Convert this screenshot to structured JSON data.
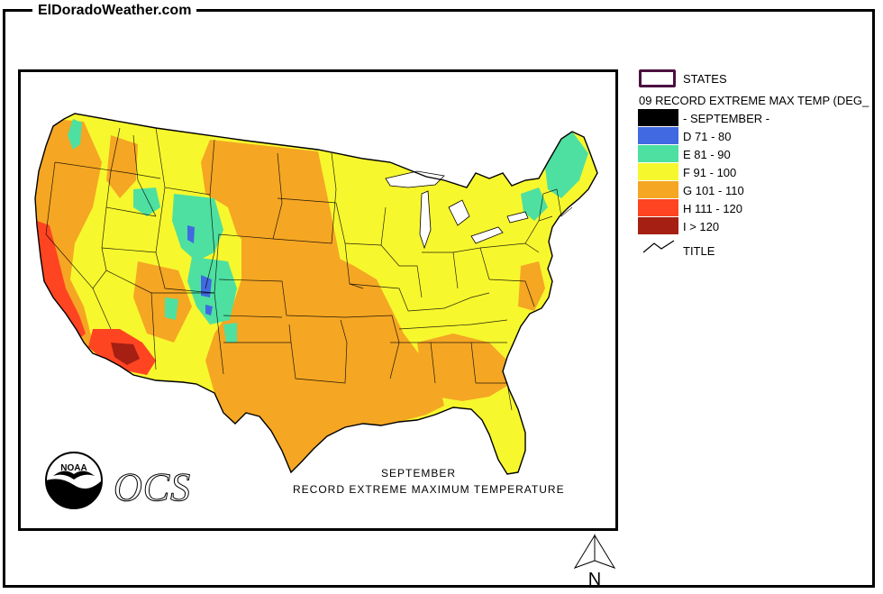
{
  "site": {
    "title": "ElDoradoWeather.com"
  },
  "map": {
    "caption_month": "SEPTEMBER",
    "caption_title": "RECORD EXTREME MAXIMUM TEMPERATURE",
    "ocs_label": "OCS",
    "noaa_label": "NOAA",
    "north_label": "N"
  },
  "legend": {
    "states_label": "STATES",
    "layer_title": "09 RECORD EXTREME MAX TEMP (DEG_",
    "items": [
      {
        "label": "- SEPTEMBER -",
        "color": "#000000"
      },
      {
        "label": "D 71 - 80",
        "color": "#4169e1"
      },
      {
        "label": "E 81 - 90",
        "color": "#4ee0a0"
      },
      {
        "label": "F 91 - 100",
        "color": "#f7f72e"
      },
      {
        "label": "G 101 - 110",
        "color": "#f5a623"
      },
      {
        "label": "H 111 - 120",
        "color": "#ff4422"
      },
      {
        "label": "I > 120",
        "color": "#a51f12"
      }
    ],
    "title_label": "TITLE"
  }
}
